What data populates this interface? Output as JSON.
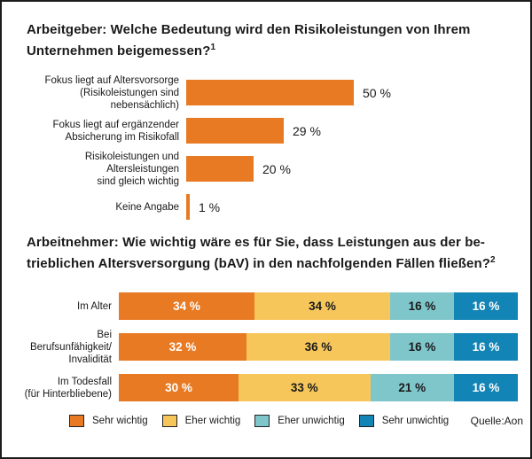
{
  "source": "Quelle:Aon",
  "chart_data": [
    {
      "type": "bar",
      "orientation": "horizontal",
      "stacked": false,
      "title": "Arbeitgeber: Welche Bedeutung wird den Risikoleistungen von Ihrem Unternehmen beigemessen?",
      "title_lines": [
        "Arbeitgeber: Welche Bedeutung wird den Risikoleistungen von Ihrem",
        "Unternehmen beigemessen?"
      ],
      "footnote_marker": "1",
      "categories": [
        "Fokus liegt auf Altersvorsorge (Risikoleistungen sind nebensächlich)",
        "Fokus liegt auf ergänzender Absicherung im Risikofall",
        "Risikoleistungen und Altersleistungen sind gleich wichtig",
        "Keine Angabe"
      ],
      "category_lines": [
        [
          "Fokus liegt auf Altersvorsorge",
          "(Risikoleistungen sind nebensächlich)"
        ],
        [
          "Fokus liegt auf ergänzender",
          "Absicherung im Risikofall"
        ],
        [
          "Risikoleistungen und Altersleistungen",
          "sind gleich wichtig"
        ],
        [
          "Keine Angabe"
        ]
      ],
      "values": [
        50,
        29,
        20,
        1
      ],
      "value_labels": [
        "50 %",
        "29 %",
        "20 %",
        "1 %"
      ],
      "bar_color": "#E87A24",
      "xlim": [
        0,
        100
      ],
      "grid": false,
      "xlabel": "",
      "ylabel": ""
    },
    {
      "type": "bar",
      "orientation": "horizontal",
      "stacked": true,
      "title": "Arbeitnehmer: Wie wichtig wäre es für Sie, dass Leistungen aus der betrieblichen Altersversorgung (bAV) in den nachfolgenden Fällen fließen?",
      "title_lines": [
        "Arbeitnehmer: Wie wichtig wäre es für Sie, dass Leistungen aus der be-",
        "trieblichen Altersversorgung (bAV) in den nachfolgenden Fällen fließen?"
      ],
      "footnote_marker": "2",
      "categories": [
        "Im Alter",
        "Bei Berufsunfähigkeit/ Invalidität",
        "Im Todesfall (für Hinterbliebene)"
      ],
      "category_lines": [
        [
          "Im Alter"
        ],
        [
          "Bei Berufsunfähigkeit/",
          "Invalidität"
        ],
        [
          "Im Todesfall",
          "(für Hinterbliebene)"
        ]
      ],
      "series": [
        {
          "name": "Sehr wichtig",
          "color": "#E87A24",
          "text_color": "#FFFFFF",
          "values": [
            34,
            32,
            30
          ]
        },
        {
          "name": "Eher wichtig",
          "color": "#F6C65B",
          "text_color": "#1A1A1A",
          "values": [
            34,
            36,
            33
          ]
        },
        {
          "name": "Eher unwichtig",
          "color": "#7FC6CB",
          "text_color": "#1A1A1A",
          "values": [
            16,
            16,
            21
          ]
        },
        {
          "name": "Sehr unwichtig",
          "color": "#1284B5",
          "text_color": "#FFFFFF",
          "values": [
            16,
            16,
            16
          ]
        }
      ],
      "value_suffix": " %",
      "xlim": [
        0,
        100
      ],
      "grid": false,
      "legend_position": "bottom",
      "xlabel": "",
      "ylabel": ""
    }
  ]
}
